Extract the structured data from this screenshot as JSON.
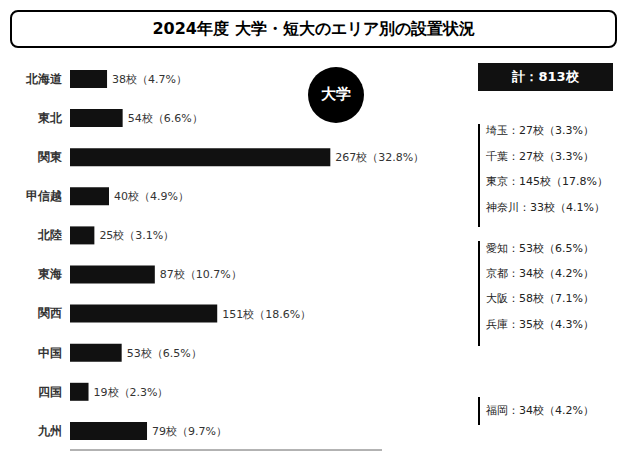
{
  "chart_data": {
    "type": "bar",
    "orientation": "horizontal",
    "title": "2024年度  大学・短大のエリア別の設置状況",
    "categories": [
      "北海道",
      "東北",
      "関東",
      "甲信越",
      "北陸",
      "東海",
      "関西",
      "中国",
      "四国",
      "九州"
    ],
    "values": [
      38,
      54,
      267,
      40,
      25,
      87,
      151,
      53,
      19,
      79
    ],
    "value_labels": [
      "38校（4.7%）",
      "54校（6.6%）",
      "267校（32.8%）",
      "40校（4.9%）",
      "25校（3.1%）",
      "87校（10.7%）",
      "151校（18.6%）",
      "53校（6.5%）",
      "19校（2.3%）",
      "79校（9.7%）"
    ],
    "data_labels": true,
    "color": "#111111",
    "xlim": [
      0,
      320
    ],
    "tick_labels": "y",
    "grid": false,
    "annotations": [
      "大学",
      "計：813校",
      "埼玉：27校（3.3%）",
      "千葉：27校（3.3%）",
      "東京：145校（17.8%）",
      "神奈川：33校（4.1%）",
      "愛知：53校（6.5%）",
      "京都：34校（4.2%）",
      "大阪：58校（7.1%）",
      "兵庫：35校（4.3%）",
      "福岡：34校（4.2%）"
    ]
  }
}
